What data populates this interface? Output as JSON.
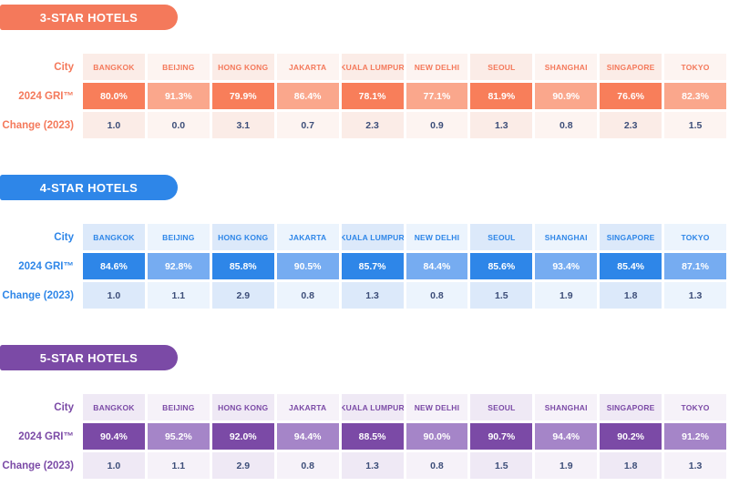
{
  "report": {
    "row_labels": {
      "city": "City",
      "gri": "2024 GRI™",
      "change": "Change (2023)"
    },
    "cities": [
      "BANGKOK",
      "BEIJING",
      "HONG KONG",
      "JAKARTA",
      "KUALA LUMPUR",
      "NEW DELHI",
      "SEOUL",
      "SHANGHAI",
      "SINGAPORE",
      "TOKYO"
    ],
    "change_text_color": "#3D4E79",
    "sections": [
      {
        "id": "3-star",
        "title": "3-STAR HOTELS",
        "colors": {
          "accent": "#F4795B",
          "dark_cell": "#F87E5A",
          "light_cell": "#FAA78C",
          "tint_odd": "#FBECE7",
          "tint_even": "#FDF4F1"
        },
        "gri": [
          "80.0%",
          "91.3%",
          "79.9%",
          "86.4%",
          "78.1%",
          "77.1%",
          "81.9%",
          "90.9%",
          "76.6%",
          "82.3%"
        ],
        "change": [
          "1.0",
          "0.0",
          "3.1",
          "0.7",
          "2.3",
          "0.9",
          "1.3",
          "0.8",
          "2.3",
          "1.5"
        ]
      },
      {
        "id": "4-star",
        "title": "4-STAR HOTELS",
        "colors": {
          "accent": "#2E86E8",
          "dark_cell": "#2E86E8",
          "light_cell": "#76ACF1",
          "tint_odd": "#DCE9FA",
          "tint_even": "#ECF4FD"
        },
        "gri": [
          "84.6%",
          "92.8%",
          "85.8%",
          "90.5%",
          "85.7%",
          "84.4%",
          "85.6%",
          "93.4%",
          "85.4%",
          "87.1%"
        ],
        "change": [
          "1.0",
          "1.1",
          "2.9",
          "0.8",
          "1.3",
          "0.8",
          "1.5",
          "1.9",
          "1.8",
          "1.3"
        ]
      },
      {
        "id": "5-star",
        "title": "5-STAR HOTELS",
        "colors": {
          "accent": "#7B4AA6",
          "dark_cell": "#7B4AA6",
          "light_cell": "#A585C8",
          "tint_odd": "#EFE9F5",
          "tint_even": "#F6F2F9"
        },
        "gri": [
          "90.4%",
          "95.2%",
          "92.0%",
          "94.4%",
          "88.5%",
          "90.0%",
          "90.7%",
          "94.4%",
          "90.2%",
          "91.2%"
        ],
        "change": [
          "1.0",
          "1.1",
          "2.9",
          "0.8",
          "1.3",
          "0.8",
          "1.5",
          "1.9",
          "1.8",
          "1.3"
        ]
      }
    ]
  },
  "chart_data": [
    {
      "type": "table",
      "title": "3-STAR HOTELS",
      "row_headers": [
        "City",
        "2024 GRI™",
        "Change (2023)"
      ],
      "categories": [
        "BANGKOK",
        "BEIJING",
        "HONG KONG",
        "JAKARTA",
        "KUALA LUMPUR",
        "NEW DELHI",
        "SEOUL",
        "SHANGHAI",
        "SINGAPORE",
        "TOKYO"
      ],
      "series": [
        {
          "name": "2024 GRI™ (%)",
          "values": [
            80.0,
            91.3,
            79.9,
            86.4,
            78.1,
            77.1,
            81.9,
            90.9,
            76.6,
            82.3
          ]
        },
        {
          "name": "Change (2023)",
          "values": [
            1.0,
            0.0,
            3.1,
            0.7,
            2.3,
            0.9,
            1.3,
            0.8,
            2.3,
            1.5
          ]
        }
      ]
    },
    {
      "type": "table",
      "title": "4-STAR HOTELS",
      "row_headers": [
        "City",
        "2024 GRI™",
        "Change (2023)"
      ],
      "categories": [
        "BANGKOK",
        "BEIJING",
        "HONG KONG",
        "JAKARTA",
        "KUALA LUMPUR",
        "NEW DELHI",
        "SEOUL",
        "SHANGHAI",
        "SINGAPORE",
        "TOKYO"
      ],
      "series": [
        {
          "name": "2024 GRI™ (%)",
          "values": [
            84.6,
            92.8,
            85.8,
            90.5,
            85.7,
            84.4,
            85.6,
            93.4,
            85.4,
            87.1
          ]
        },
        {
          "name": "Change (2023)",
          "values": [
            1.0,
            1.1,
            2.9,
            0.8,
            1.3,
            0.8,
            1.5,
            1.9,
            1.8,
            1.3
          ]
        }
      ]
    },
    {
      "type": "table",
      "title": "5-STAR HOTELS",
      "row_headers": [
        "City",
        "2024 GRI™",
        "Change (2023)"
      ],
      "categories": [
        "BANGKOK",
        "BEIJING",
        "HONG KONG",
        "JAKARTA",
        "KUALA LUMPUR",
        "NEW DELHI",
        "SEOUL",
        "SHANGHAI",
        "SINGAPORE",
        "TOKYO"
      ],
      "series": [
        {
          "name": "2024 GRI™ (%)",
          "values": [
            90.4,
            95.2,
            92.0,
            94.4,
            88.5,
            90.0,
            90.7,
            94.4,
            90.2,
            91.2
          ]
        },
        {
          "name": "Change (2023)",
          "values": [
            1.0,
            1.1,
            2.9,
            0.8,
            1.3,
            0.8,
            1.5,
            1.9,
            1.8,
            1.3
          ]
        }
      ]
    }
  ]
}
